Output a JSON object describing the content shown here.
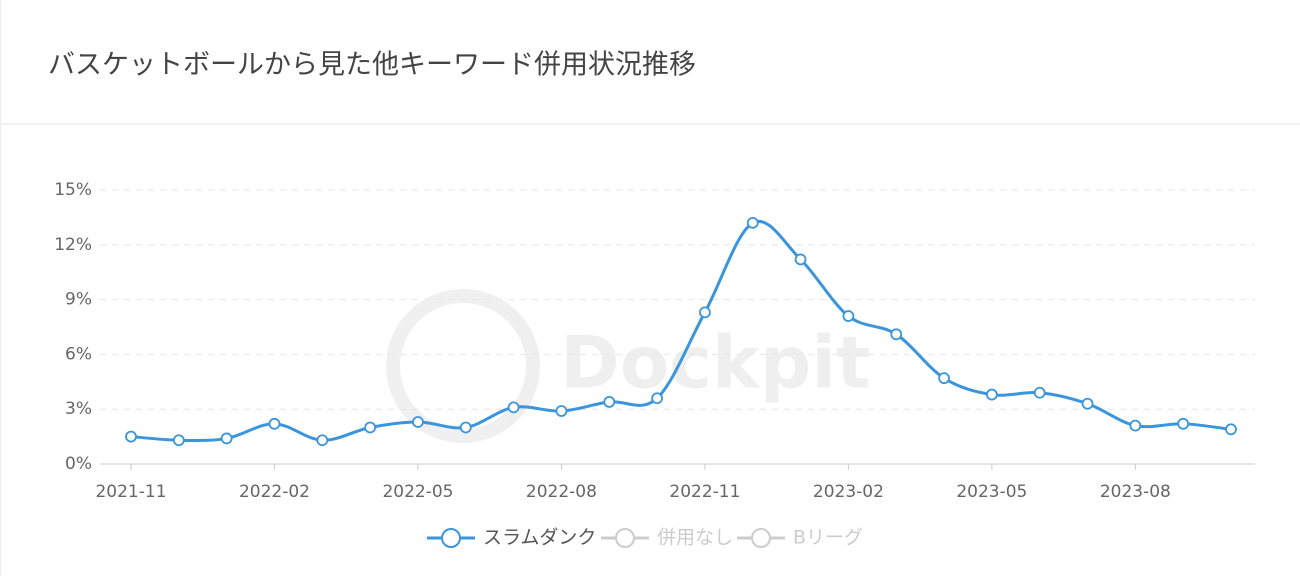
{
  "chart_data": {
    "type": "line",
    "title": "バスケットボールから見た他キーワード併用状況推移",
    "watermark": "Dockpit",
    "categories": [
      "2021-11",
      null,
      null,
      "2022-02",
      null,
      null,
      "2022-05",
      null,
      null,
      "2022-08",
      null,
      null,
      "2022-11",
      null,
      null,
      "2023-02",
      null,
      null,
      "2023-05",
      null,
      null,
      "2023-08",
      null,
      null
    ],
    "series": [
      {
        "name": "スラムダンク",
        "color": "#3b95dc",
        "values": [
          1.5,
          1.3,
          1.4,
          2.2,
          1.3,
          2.0,
          2.3,
          2.0,
          3.1,
          2.9,
          3.4,
          3.6,
          8.3,
          13.2,
          11.2,
          8.1,
          7.1,
          4.7,
          3.8,
          3.9,
          3.3,
          2.1,
          2.2,
          1.9
        ]
      }
    ],
    "legend": [
      {
        "name": "スラムダンク",
        "active": true
      },
      {
        "name": "併用なし",
        "active": false
      },
      {
        "name": "Bリーグ",
        "active": false
      }
    ],
    "ylim": [
      0,
      15
    ],
    "yticks": [
      {
        "value": 0,
        "label": "0%"
      },
      {
        "value": 3,
        "label": "3%"
      },
      {
        "value": 6,
        "label": "6%"
      },
      {
        "value": 9,
        "label": "9%"
      },
      {
        "value": 12,
        "label": "12%"
      },
      {
        "value": 15,
        "label": "15%"
      }
    ],
    "grid": true,
    "smooth": true
  }
}
